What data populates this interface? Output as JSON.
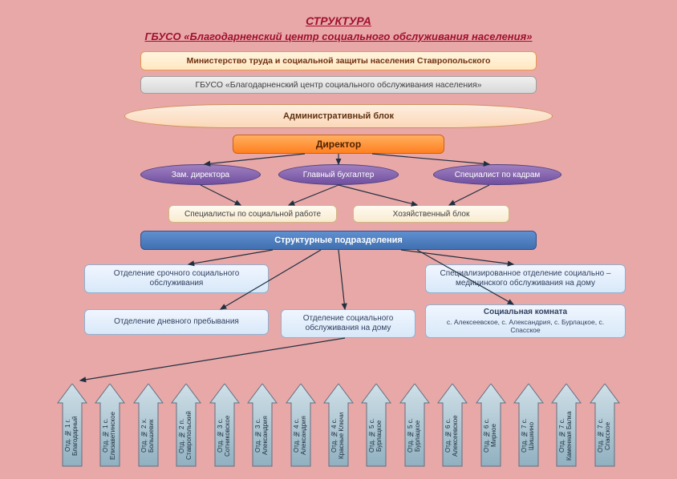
{
  "title": {
    "main": "СТРУКТУРА",
    "sub": "ГБУСО «Благодарненский центр социального обслуживания населения»"
  },
  "nodes": {
    "ministry": "Министерство труда и социальной защиты населения Ставропольского",
    "gbuso": "ГБУСО «Благодарненский центр социального обслуживания населения»",
    "admin": "Административный блок",
    "director": "Директор",
    "deputy": "Зам. директора",
    "accountant": "Главный бухгалтер",
    "hr": "Специалист по кадрам",
    "social_spec": "Специалисты по социальной работе",
    "household": "Хозяйственный блок",
    "structural": "Структурные подразделения",
    "urgent": "Отделение срочного социального обслуживания",
    "specmed": "Специализированное отделение социально – медицинского обслуживания на дому",
    "daycare": "Отделение дневного пребывания",
    "homesvc": "Отделение социального обслуживания на дому",
    "socroom_title": "Социальная комната",
    "socroom_sub": "с. Алексеевское, с. Александрия, с. Бурлацкое, с. Спасское"
  },
  "departments": [
    "Отд. № 1 г. Благодарный",
    "Отд. № 1 с. Елизаветинское",
    "Отд. № 2 х. Большевик",
    "Отд. № 2 п. Ставропольский",
    "Отд. № 3 с. Сотниковское",
    "Отд. № 3 с. Александрия",
    "Отд. № 4 с. Александрия",
    "Отд. № 4 с. Красные Ключи",
    "Отд. № 5 с. Бурлацкое",
    "Отд. № 5 с. Бурлацкое",
    "Отд. № 6 с. Алексеевское",
    "Отд. № 6 с. Мирное",
    "Отд. № 7 с. Шишкино",
    "Отд. № 7 с. Каменная Балка",
    "Отд. № 7 с. Спасское"
  ],
  "colors": {
    "bg": "#e8a8a8",
    "title": "#a01030",
    "arrow": "#203040",
    "dept_fill_top": "#d0e0e8",
    "dept_fill_bot": "#90b0c0",
    "dept_stroke": "#607080"
  }
}
